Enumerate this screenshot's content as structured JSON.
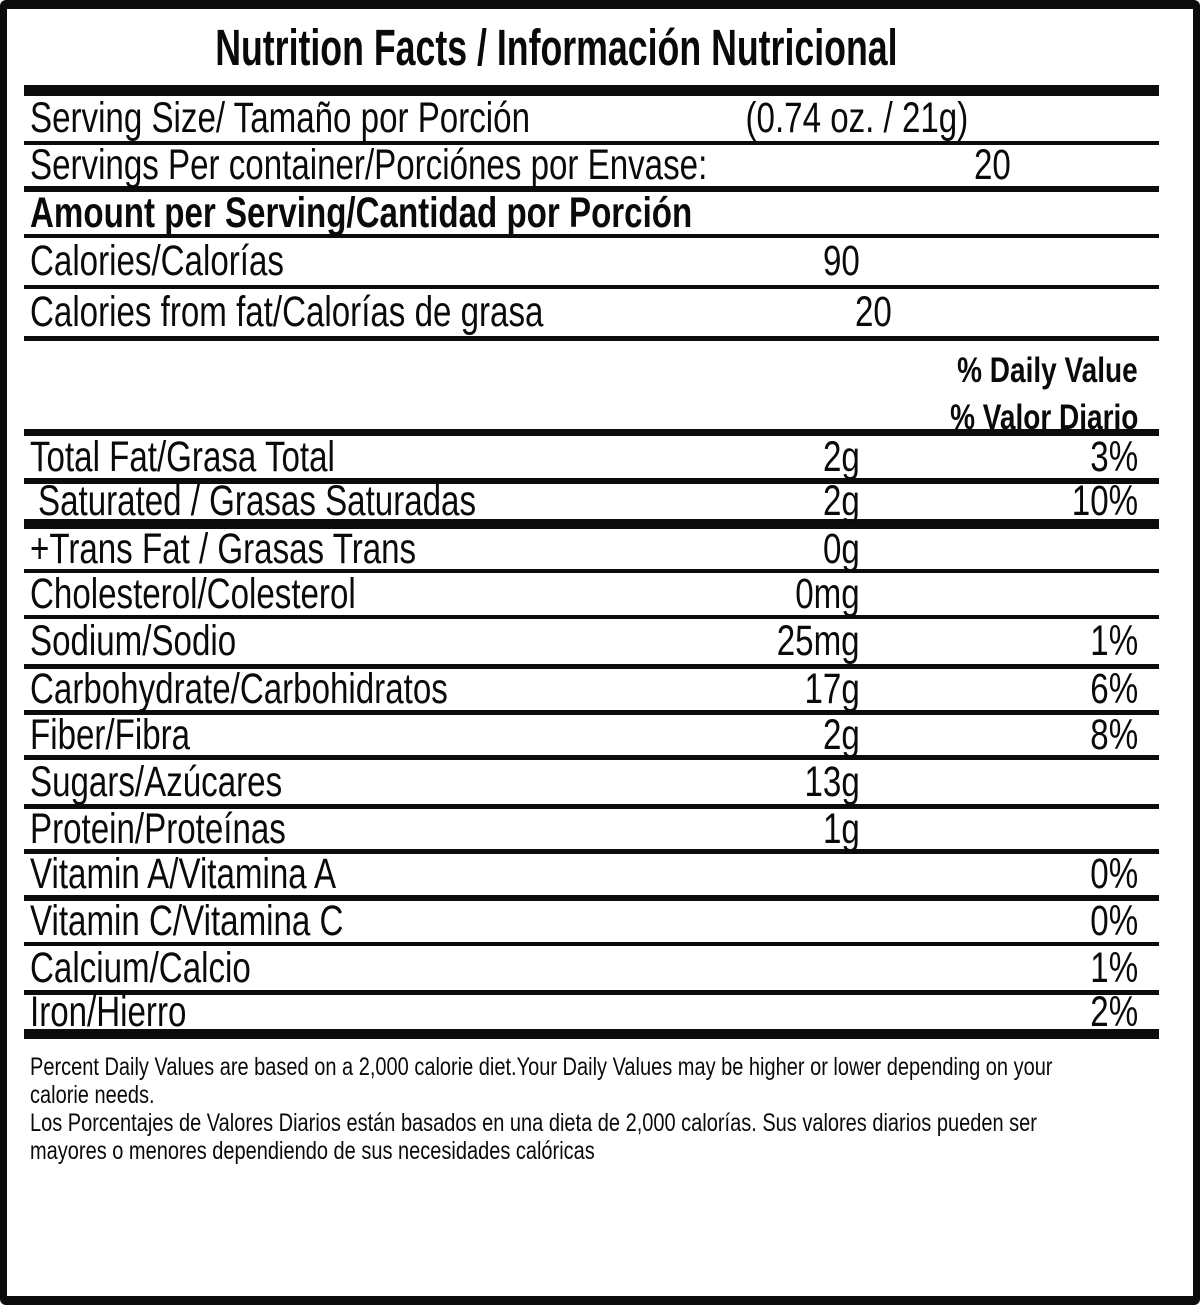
{
  "title": "Nutrition Facts / Información Nutricional",
  "serving": {
    "size_label": "Serving Size/ Tamaño por Porción",
    "size_value": "(0.74 oz. / 21g)",
    "per_container_label": "Servings Per container/Porciónes por Envase:",
    "per_container_value": "20"
  },
  "amount_header": "Amount per Serving/Cantidad por Porción",
  "calories": {
    "label": "Calories/Calorías",
    "value": "90"
  },
  "calories_from_fat": {
    "label": "Calories from fat/Calorías de grasa",
    "value": "20"
  },
  "daily_value_header": {
    "en": "% Daily Value",
    "es": "% Valor Diario"
  },
  "nutrients": [
    {
      "label": "Total Fat/Grasa Total",
      "amount": "2g",
      "dv": "3%"
    },
    {
      "label": "Saturated / Grasas Saturadas",
      "amount": "2g",
      "dv": "10%"
    },
    {
      "label": "+Trans Fat / Grasas Trans",
      "amount": "0g",
      "dv": ""
    },
    {
      "label": "Cholesterol/Colesterol",
      "amount": "0mg",
      "dv": ""
    },
    {
      "label": "Sodium/Sodio",
      "amount": "25mg",
      "dv": "1%"
    },
    {
      "label": "Carbohydrate/Carbohidratos",
      "amount": "17g",
      "dv": "6%"
    },
    {
      "label": "Fiber/Fibra",
      "amount": "2g",
      "dv": "8%"
    },
    {
      "label": "Sugars/Azúcares",
      "amount": "13g",
      "dv": ""
    },
    {
      "label": "Protein/Proteínas",
      "amount": "1g",
      "dv": ""
    },
    {
      "label": "Vitamin A/Vitamina A",
      "amount": "",
      "dv": "0%"
    },
    {
      "label": "Vitamin C/Vitamina C",
      "amount": "",
      "dv": "0%"
    },
    {
      "label": "Calcium/Calcio",
      "amount": "",
      "dv": "1%"
    },
    {
      "label": "Iron/Hierro",
      "amount": "",
      "dv": "2%"
    }
  ],
  "footnote": {
    "lines": [
      "Percent Daily Values are based on a 2,000 calorie diet.Your Daily Values may be higher or lower depending on your",
      "calorie needs.",
      "Los Porcentajes de Valores Diarios están basados en una dieta de 2,000 calorías. Sus valores diarios pueden ser",
      "mayores o menores dependiendo de sus necesidades calóricas"
    ]
  },
  "colors": {
    "ink": "#0c0c0c",
    "background": "#ffffff"
  }
}
